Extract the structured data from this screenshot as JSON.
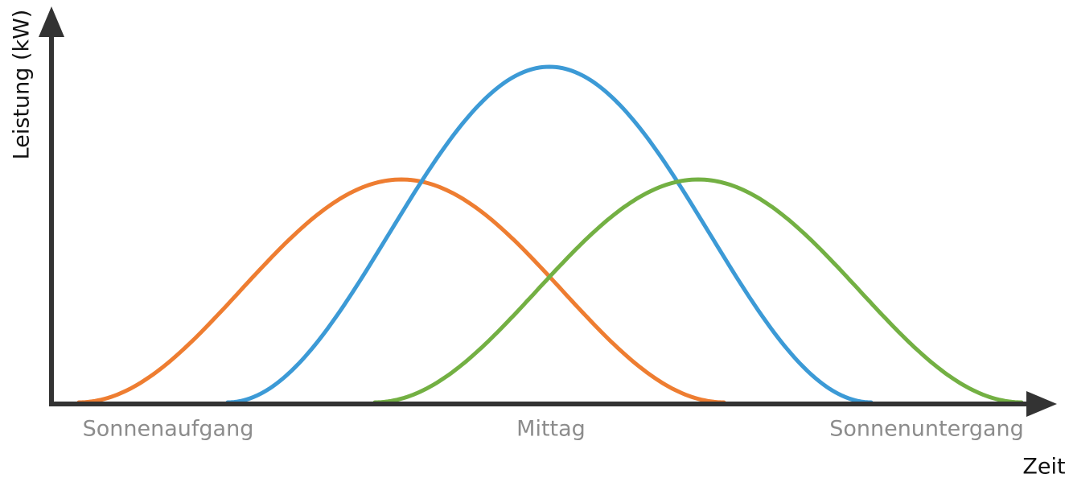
{
  "axes": {
    "y_label": "Leistung (kW)",
    "x_label": "Zeit"
  },
  "x_labels": [
    "Sonnenaufgang",
    "Mittag",
    "Sonnenuntergang"
  ]
}
